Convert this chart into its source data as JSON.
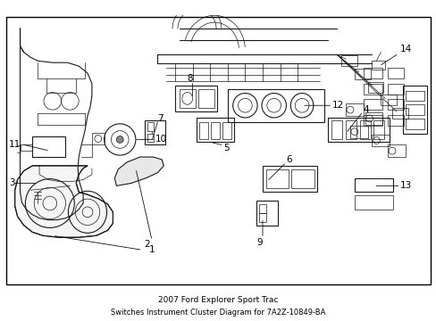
{
  "title": "2007 Ford Explorer Sport Trac",
  "subtitle": "Switches Instrument Cluster Diagram for 7A2Z-10849-BA",
  "bg_color": "#ffffff",
  "fig_width": 4.89,
  "fig_height": 3.6,
  "dpi": 100,
  "line_color": "#1a1a1a",
  "label_fontsize": 7.5,
  "title_fontsize": 6.5
}
